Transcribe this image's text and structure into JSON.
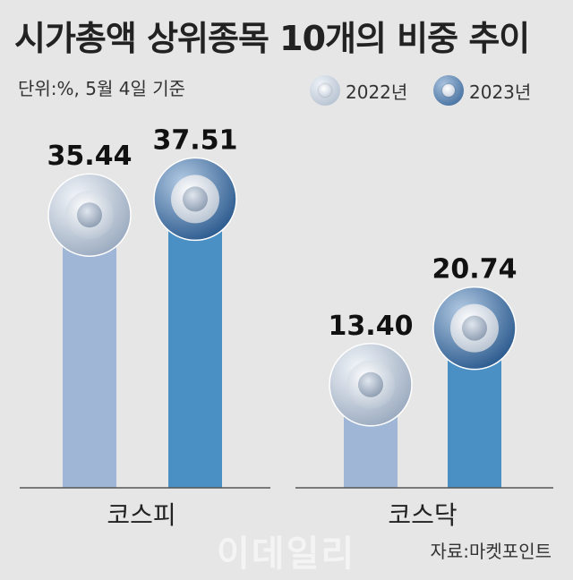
{
  "header": {
    "title": "시가총액 상위종목 10개의 비중 추이",
    "unit": "단위:%, 5월 4일 기준"
  },
  "legend": [
    {
      "label": "2022년",
      "color": "#9fb6d6"
    },
    {
      "label": "2023년",
      "color": "#4a90c4"
    }
  ],
  "chart_data": {
    "type": "bar",
    "categories": [
      "코스피",
      "코스닥"
    ],
    "series": [
      {
        "name": "2022년",
        "values": [
          35.44,
          13.4
        ],
        "value_labels": [
          "35.44",
          "13.40"
        ],
        "color": "#9fb6d6"
      },
      {
        "name": "2023년",
        "values": [
          37.51,
          20.74
        ],
        "value_labels": [
          "37.51",
          "20.74"
        ],
        "color": "#4a90c4"
      }
    ],
    "title": "시가총액 상위종목 10개의 비중 추이",
    "xlabel": "",
    "ylabel": "",
    "grid": false,
    "legend_position": "top-right"
  },
  "footer": {
    "source": "자료:마켓포인트",
    "watermark": "이데일리"
  }
}
